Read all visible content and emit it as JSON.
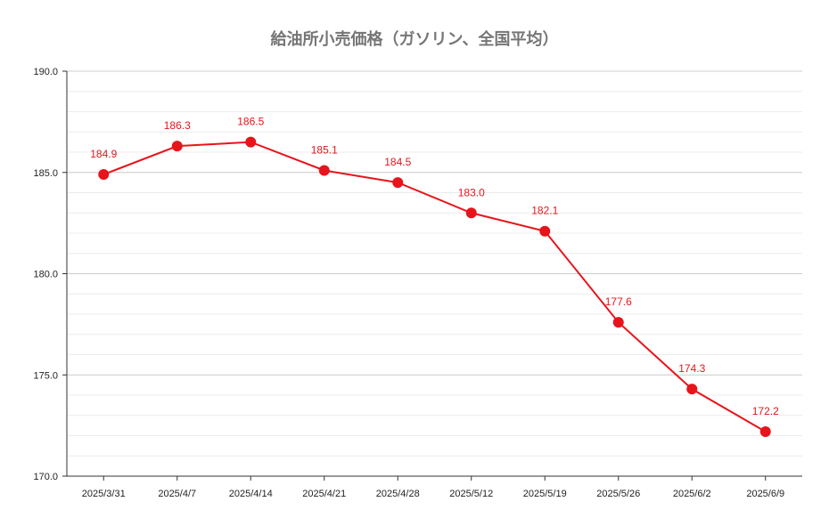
{
  "chart_data": {
    "type": "line",
    "title": "給油所小売価格（ガソリン、全国平均）",
    "categories": [
      "2025/3/31",
      "2025/4/7",
      "2025/4/14",
      "2025/4/21",
      "2025/4/28",
      "2025/5/12",
      "2025/5/19",
      "2025/5/26",
      "2025/6/2",
      "2025/6/9"
    ],
    "series": [
      {
        "values": [
          184.9,
          186.3,
          186.5,
          185.1,
          184.5,
          183.0,
          182.1,
          177.6,
          174.3,
          172.2
        ],
        "labels": [
          "184.9",
          "186.3",
          "186.5",
          "185.1",
          "184.5",
          "183.0",
          "182.1",
          "177.6",
          "174.3",
          "172.2"
        ]
      }
    ],
    "ylim": [
      170,
      190
    ],
    "yticks": [
      "170.0",
      "175.0",
      "180.0",
      "185.0",
      "190.0"
    ],
    "xlabel": "",
    "ylabel": "",
    "grid": true,
    "line_color": "#e8141b"
  }
}
